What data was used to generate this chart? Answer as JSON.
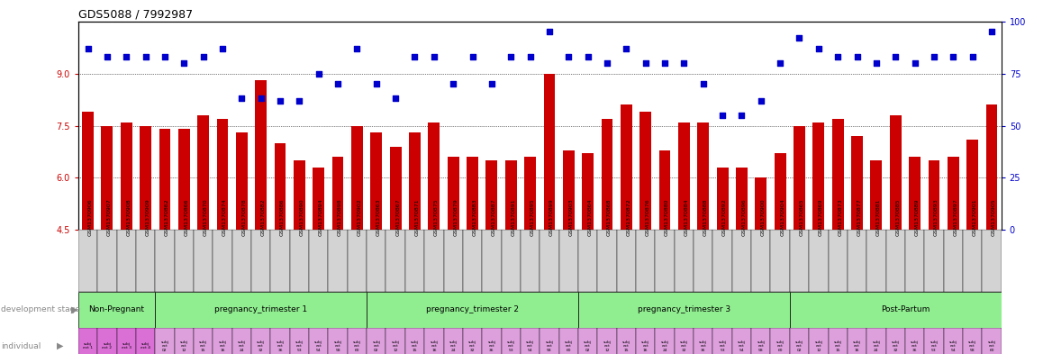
{
  "title": "GDS5088 / 7992987",
  "sample_ids": [
    "GSM1370906",
    "GSM1370907",
    "GSM1370908",
    "GSM1370909",
    "GSM1370862",
    "GSM1370866",
    "GSM1370870",
    "GSM1370874",
    "GSM1370878",
    "GSM1370882",
    "GSM1370886",
    "GSM1370890",
    "GSM1370894",
    "GSM1370898",
    "GSM1370902",
    "GSM1370863",
    "GSM1370867",
    "GSM1370871",
    "GSM1370875",
    "GSM1370879",
    "GSM1370883",
    "GSM1370887",
    "GSM1370891",
    "GSM1370895",
    "GSM1370899",
    "GSM1370903",
    "GSM1370864",
    "GSM1370868",
    "GSM1370872",
    "GSM1370876",
    "GSM1370880",
    "GSM1370884",
    "GSM1370888",
    "GSM1370892",
    "GSM1370896",
    "GSM1370900",
    "GSM1370904",
    "GSM1370865",
    "GSM1370869",
    "GSM1370873",
    "GSM1370877",
    "GSM1370881",
    "GSM1370885",
    "GSM1370889",
    "GSM1370893",
    "GSM1370897",
    "GSM1370901",
    "GSM1370905"
  ],
  "bar_values": [
    7.9,
    7.5,
    7.6,
    7.5,
    7.4,
    7.4,
    7.8,
    7.7,
    7.3,
    8.8,
    7.0,
    6.5,
    6.3,
    6.6,
    7.5,
    7.3,
    6.9,
    7.3,
    7.6,
    6.6,
    6.6,
    6.5,
    6.5,
    6.6,
    9.0,
    6.8,
    6.7,
    7.7,
    8.1,
    7.9,
    6.8,
    7.6,
    7.6,
    6.3,
    6.3,
    6.0,
    6.7,
    7.5,
    7.6,
    7.7,
    7.2,
    6.5,
    7.8,
    6.6,
    6.5,
    6.6,
    7.1,
    8.1
  ],
  "scatter_pct": [
    87,
    83,
    83,
    83,
    83,
    80,
    83,
    87,
    63,
    63,
    62,
    62,
    75,
    70,
    87,
    70,
    63,
    83,
    83,
    70,
    83,
    70,
    83,
    83,
    95,
    83,
    83,
    80,
    87,
    80,
    80,
    80,
    70,
    55,
    55,
    62,
    80,
    92,
    87,
    83,
    83,
    80,
    83,
    80,
    83,
    83,
    83,
    95
  ],
  "stage_info": [
    {
      "label": "Non-Pregnant",
      "start": 0,
      "end": 4,
      "color": "#90EE90"
    },
    {
      "label": "pregnancy_trimester 1",
      "start": 4,
      "end": 15,
      "color": "#90EE90"
    },
    {
      "label": "pregnancy_trimester 2",
      "start": 15,
      "end": 26,
      "color": "#90EE90"
    },
    {
      "label": "pregnancy_trimester 3",
      "start": 26,
      "end": 37,
      "color": "#90EE90"
    },
    {
      "label": "Post-Partum",
      "start": 37,
      "end": 49,
      "color": "#90EE90"
    }
  ],
  "non_pregnant_individual_color": "#DA70D6",
  "other_individual_color": "#DDA0DD",
  "bar_color": "#CC0000",
  "scatter_color": "#0000CC",
  "ylim_left": [
    4.5,
    10.5
  ],
  "ylim_right": [
    0,
    100
  ],
  "yticks_left": [
    4.5,
    6.0,
    7.5,
    9.0
  ],
  "yticks_right": [
    0,
    25,
    50,
    75,
    100
  ],
  "hlines": [
    6.0,
    7.5,
    9.0
  ],
  "ticklabel_bg": "#D3D3D3"
}
